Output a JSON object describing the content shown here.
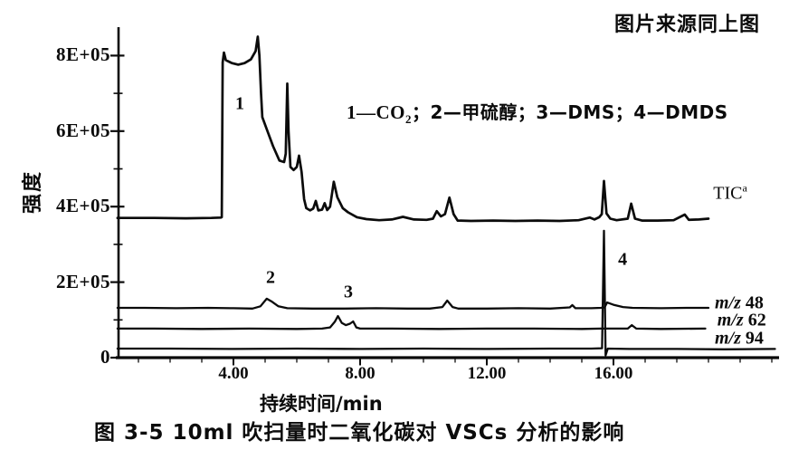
{
  "colors": {
    "ink": "#0b0b0b",
    "background": "#ffffff"
  },
  "header": {
    "source_note": "图片来源同上图"
  },
  "chart_data": {
    "type": "line",
    "title": "图 3-5  10ml 吹扫量时二氧化碳对 VSCs 分析的影响",
    "xlabel": "持续时间/min",
    "ylabel": "强度",
    "xlim": [
      0.3,
      21.2
    ],
    "ylim": [
      0,
      900000
    ],
    "grid": false,
    "legend": {
      "text": "1—CO₂；2—甲硫醇；3—DMS；4—DMDS",
      "render_parts": {
        "pre": "1—CO",
        "sub": "2",
        "post": "；2—甲硫醇；3—DMS；4—DMDS"
      }
    },
    "x_ticks": [
      {
        "value": 4,
        "label": "4.00"
      },
      {
        "value": 8,
        "label": "8.00"
      },
      {
        "value": 12,
        "label": "12.00"
      },
      {
        "value": 16,
        "label": "16.00"
      }
    ],
    "x_minor_ticks": [
      1,
      2,
      3,
      5,
      6,
      7,
      9,
      10,
      11,
      13,
      14,
      15,
      17,
      18,
      19,
      20,
      21
    ],
    "y_ticks": [
      {
        "value": 0,
        "label": "0"
      },
      {
        "value": 200000,
        "label": "2E+05"
      },
      {
        "value": 400000,
        "label": "4E+05"
      },
      {
        "value": 600000,
        "label": "6E+05"
      },
      {
        "value": 800000,
        "label": "8E+05"
      }
    ],
    "y_minor_ticks": [
      100000,
      300000,
      500000,
      700000
    ],
    "peaks": [
      {
        "label": "1",
        "compound": "CO₂",
        "t": 4.2,
        "intensity": 671000
      },
      {
        "label": "2",
        "compound": "甲硫醇",
        "t": 5.17,
        "intensity": 211000
      },
      {
        "label": "3",
        "compound": "DMS",
        "t": 7.63,
        "intensity": 173000
      },
      {
        "label": "4",
        "compound": "DMDS",
        "t": 16.29,
        "intensity": 259000
      }
    ],
    "series": [
      {
        "name": "TIC",
        "label_main": "TIC",
        "label_sup": "a",
        "label_pos": {
          "t": 19.15,
          "intensity": 436000
        },
        "points": [
          [
            0.34,
            370000
          ],
          [
            1.5,
            370000
          ],
          [
            2.5,
            369000
          ],
          [
            3.3,
            370000
          ],
          [
            3.6,
            371000
          ],
          [
            3.63,
            372000
          ],
          [
            3.66,
            782000
          ],
          [
            3.7,
            808000
          ],
          [
            3.76,
            788000
          ],
          [
            3.95,
            780000
          ],
          [
            4.15,
            776000
          ],
          [
            4.35,
            780000
          ],
          [
            4.55,
            790000
          ],
          [
            4.7,
            812000
          ],
          [
            4.77,
            850000
          ],
          [
            4.82,
            800000
          ],
          [
            4.87,
            700000
          ],
          [
            4.91,
            637000
          ],
          [
            5.05,
            605000
          ],
          [
            5.25,
            560000
          ],
          [
            5.45,
            522000
          ],
          [
            5.6,
            518000
          ],
          [
            5.65,
            540000
          ],
          [
            5.7,
            726000
          ],
          [
            5.74,
            600000
          ],
          [
            5.8,
            505000
          ],
          [
            5.9,
            497000
          ],
          [
            6.0,
            505000
          ],
          [
            6.07,
            535000
          ],
          [
            6.15,
            492000
          ],
          [
            6.23,
            420000
          ],
          [
            6.3,
            396000
          ],
          [
            6.42,
            390000
          ],
          [
            6.52,
            395000
          ],
          [
            6.6,
            415000
          ],
          [
            6.68,
            390000
          ],
          [
            6.8,
            392000
          ],
          [
            6.88,
            409000
          ],
          [
            6.96,
            391000
          ],
          [
            7.05,
            400000
          ],
          [
            7.17,
            466000
          ],
          [
            7.28,
            425000
          ],
          [
            7.45,
            396000
          ],
          [
            7.62,
            385000
          ],
          [
            7.9,
            372000
          ],
          [
            8.2,
            367000
          ],
          [
            8.6,
            364000
          ],
          [
            9.0,
            366000
          ],
          [
            9.35,
            373000
          ],
          [
            9.7,
            366000
          ],
          [
            10.1,
            365000
          ],
          [
            10.3,
            368000
          ],
          [
            10.42,
            388000
          ],
          [
            10.55,
            374000
          ],
          [
            10.68,
            380000
          ],
          [
            10.82,
            424000
          ],
          [
            10.95,
            380000
          ],
          [
            11.08,
            363000
          ],
          [
            11.5,
            362000
          ],
          [
            12.2,
            363000
          ],
          [
            12.9,
            362000
          ],
          [
            13.6,
            363000
          ],
          [
            14.3,
            362000
          ],
          [
            14.9,
            364000
          ],
          [
            15.25,
            371000
          ],
          [
            15.4,
            366000
          ],
          [
            15.55,
            372000
          ],
          [
            15.63,
            380000
          ],
          [
            15.7,
            468000
          ],
          [
            15.78,
            382000
          ],
          [
            15.9,
            368000
          ],
          [
            16.1,
            364000
          ],
          [
            16.45,
            368000
          ],
          [
            16.56,
            408000
          ],
          [
            16.68,
            368000
          ],
          [
            16.9,
            363000
          ],
          [
            17.4,
            363000
          ],
          [
            17.9,
            364000
          ],
          [
            18.25,
            379000
          ],
          [
            18.38,
            365000
          ],
          [
            18.7,
            366000
          ],
          [
            19.0,
            368000
          ]
        ]
      },
      {
        "name": "m/z 48",
        "label_main": "m/z",
        "label_num": "48",
        "label_pos": {
          "t": 19.2,
          "intensity": 144000
        },
        "points": [
          [
            0.34,
            132000
          ],
          [
            1.2,
            132000
          ],
          [
            2.2,
            131000
          ],
          [
            3.2,
            132000
          ],
          [
            4.0,
            131000
          ],
          [
            4.6,
            130000
          ],
          [
            4.85,
            136000
          ],
          [
            5.05,
            156000
          ],
          [
            5.22,
            148000
          ],
          [
            5.42,
            136000
          ],
          [
            5.7,
            131000
          ],
          [
            6.5,
            130000
          ],
          [
            7.5,
            130000
          ],
          [
            8.5,
            131000
          ],
          [
            9.5,
            130000
          ],
          [
            10.2,
            130000
          ],
          [
            10.6,
            134000
          ],
          [
            10.75,
            151000
          ],
          [
            10.92,
            134000
          ],
          [
            11.1,
            130000
          ],
          [
            12.0,
            130000
          ],
          [
            13.0,
            131000
          ],
          [
            14.0,
            130000
          ],
          [
            14.62,
            133000
          ],
          [
            14.7,
            139000
          ],
          [
            14.8,
            131000
          ],
          [
            15.3,
            131000
          ],
          [
            15.6,
            132000
          ],
          [
            15.72,
            133000
          ],
          [
            15.8,
            146000
          ],
          [
            16.0,
            140000
          ],
          [
            16.3,
            134000
          ],
          [
            16.6,
            132000
          ],
          [
            17.5,
            131000
          ],
          [
            18.3,
            132000
          ],
          [
            19.0,
            132000
          ]
        ]
      },
      {
        "name": "m/z 62",
        "label_main": "m/z",
        "label_num": "62",
        "label_pos": {
          "t": 19.28,
          "intensity": 98000
        },
        "points": [
          [
            0.34,
            77000
          ],
          [
            1.5,
            77000
          ],
          [
            3.0,
            76000
          ],
          [
            4.5,
            77000
          ],
          [
            6.0,
            76000
          ],
          [
            6.8,
            77000
          ],
          [
            7.05,
            80000
          ],
          [
            7.2,
            95000
          ],
          [
            7.3,
            110000
          ],
          [
            7.42,
            92000
          ],
          [
            7.55,
            86000
          ],
          [
            7.68,
            90000
          ],
          [
            7.78,
            96000
          ],
          [
            7.88,
            80000
          ],
          [
            8.0,
            77000
          ],
          [
            9.0,
            77000
          ],
          [
            10.5,
            76000
          ],
          [
            12.0,
            77000
          ],
          [
            13.5,
            77000
          ],
          [
            15.0,
            76000
          ],
          [
            15.6,
            77000
          ],
          [
            16.0,
            77000
          ],
          [
            16.45,
            77000
          ],
          [
            16.58,
            86000
          ],
          [
            16.72,
            77000
          ],
          [
            17.5,
            76000
          ],
          [
            18.9,
            77000
          ]
        ]
      },
      {
        "name": "m/z 94",
        "label_main": "m/z",
        "label_num": "94",
        "label_pos": {
          "t": 19.2,
          "intensity": 50000
        },
        "points": [
          [
            0.34,
            24000
          ],
          [
            2.0,
            24000
          ],
          [
            4.0,
            23000
          ],
          [
            6.0,
            24000
          ],
          [
            8.0,
            23000
          ],
          [
            10.0,
            24000
          ],
          [
            12.0,
            23000
          ],
          [
            14.0,
            24000
          ],
          [
            15.3,
            24000
          ],
          [
            15.64,
            25000
          ],
          [
            15.7,
            336000
          ],
          [
            15.75,
            6000
          ],
          [
            15.82,
            24000
          ],
          [
            16.5,
            23000
          ],
          [
            18.0,
            23000
          ],
          [
            19.5,
            22000
          ],
          [
            21.1,
            23000
          ]
        ]
      }
    ]
  },
  "caption": "图 3-5  10ml 吹扫量时二氧化碳对 VSCs 分析的影响"
}
